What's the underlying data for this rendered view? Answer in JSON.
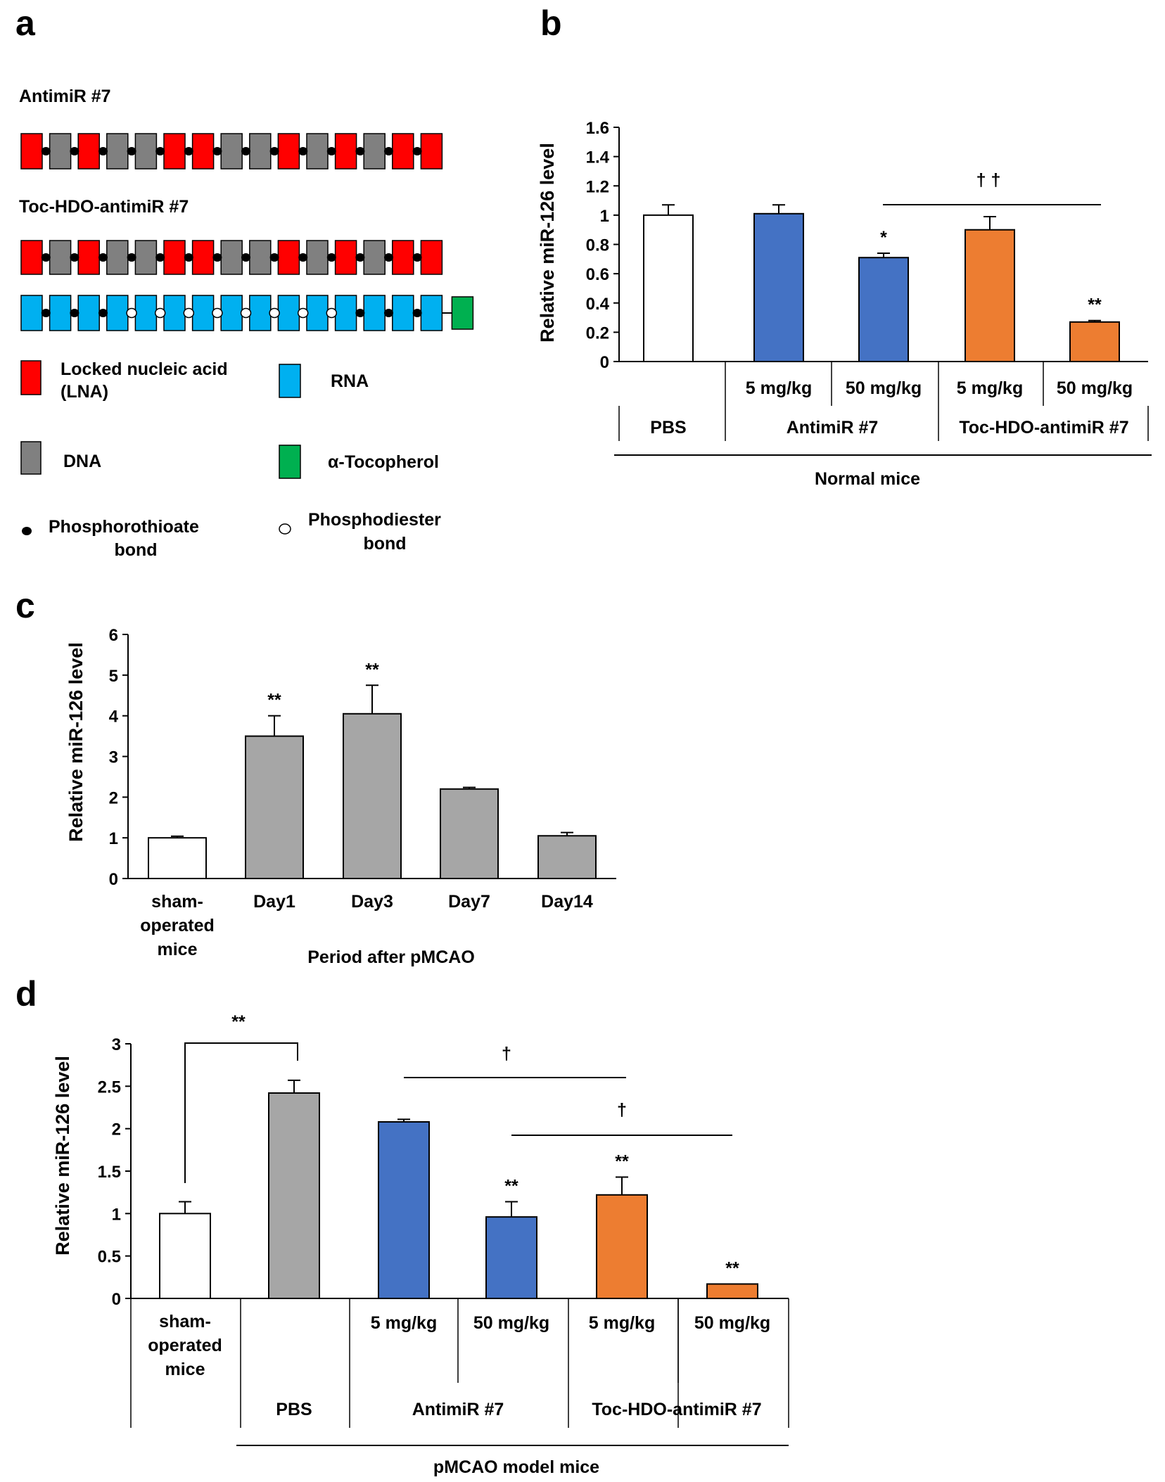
{
  "panels": {
    "a": {
      "letter": "a",
      "construct1_title": "AntimiR #7",
      "construct2_title": "Toc-HDO-antimiR #7",
      "antimir_strand": [
        "LNA",
        "DNA",
        "LNA",
        "DNA",
        "DNA",
        "LNA",
        "LNA",
        "DNA",
        "DNA",
        "LNA",
        "DNA",
        "LNA",
        "DNA",
        "LNA",
        "LNA"
      ],
      "antimir_bonds": [
        "PS",
        "PS",
        "PS",
        "PS",
        "PS",
        "PS",
        "PS",
        "PS",
        "PS",
        "PS",
        "PS",
        "PS",
        "PS",
        "PS"
      ],
      "rna_strand": [
        "RNA",
        "RNA",
        "RNA",
        "RNA",
        "RNA",
        "RNA",
        "RNA",
        "RNA",
        "RNA",
        "RNA",
        "RNA",
        "RNA",
        "RNA",
        "RNA",
        "RNA"
      ],
      "rna_bonds": [
        "PS",
        "PS",
        "PS",
        "PO",
        "PO",
        "PO",
        "PO",
        "PO",
        "PO",
        "PO",
        "PO",
        "PS",
        "PS",
        "PS"
      ],
      "legend": {
        "lna_line1": "Locked nucleic acid",
        "lna_line2": "(LNA)",
        "rna": "RNA",
        "dna": "DNA",
        "toc": "α-Tocopherol",
        "ps_line1": "Phosphorothioate",
        "ps_line2": "bond",
        "po_line1": "Phosphodiester",
        "po_line2": "bond"
      },
      "colors": {
        "LNA": "#ff0000",
        "DNA": "#808080",
        "RNA": "#00b0f0",
        "Toc": "#00b050"
      }
    },
    "b_letter": "b",
    "c_letter": "c",
    "d_letter": "d"
  },
  "chart_data": [
    {
      "panel": "b",
      "type": "bar",
      "ylabel": "Relative miR-126 level",
      "ylim": [
        0,
        1.6
      ],
      "yticks": [
        "0",
        "0.2",
        "0.4",
        "0.6",
        "0.8",
        "1",
        "1.2",
        "1.4",
        "1.6"
      ],
      "bars": [
        {
          "value": 1.0,
          "err": 0.07,
          "color": "#ffffff",
          "sig": ""
        },
        {
          "value": 1.01,
          "err": 0.06,
          "color": "#4472c4",
          "sig": ""
        },
        {
          "value": 0.71,
          "err": 0.03,
          "color": "#4472c4",
          "sig": "*"
        },
        {
          "value": 0.9,
          "err": 0.09,
          "color": "#ed7d31",
          "sig": ""
        },
        {
          "value": 0.27,
          "err": 0.01,
          "color": "#ed7d31",
          "sig": "**"
        }
      ],
      "row1": [
        "",
        "5 mg/kg",
        "50 mg/kg",
        "5 mg/kg",
        "50 mg/kg"
      ],
      "row2": [
        "PBS",
        "AntimiR #7",
        "Toc-HDO-antimiR #7"
      ],
      "group_label": "Normal mice",
      "brackets": [
        {
          "label": "† †"
        }
      ]
    },
    {
      "panel": "c",
      "type": "bar",
      "ylabel": "Relative miR-126 level",
      "xlabel": "Period after pMCAO",
      "ylim": [
        0,
        6
      ],
      "yticks": [
        "0",
        "1",
        "2",
        "3",
        "4",
        "5",
        "6"
      ],
      "categories": [
        "sham-operated mice",
        "Day1",
        "Day3",
        "Day7",
        "Day14"
      ],
      "category_lines": [
        [
          "sham-",
          "operated",
          "mice"
        ],
        [
          "Day1"
        ],
        [
          "Day3"
        ],
        [
          "Day7"
        ],
        [
          "Day14"
        ]
      ],
      "bars": [
        {
          "value": 1.0,
          "err": 0.04,
          "color": "#ffffff",
          "sig": ""
        },
        {
          "value": 3.5,
          "err": 0.5,
          "color": "#a6a6a6",
          "sig": "**"
        },
        {
          "value": 4.05,
          "err": 0.7,
          "color": "#a6a6a6",
          "sig": "**"
        },
        {
          "value": 2.2,
          "err": 0.04,
          "color": "#a6a6a6",
          "sig": ""
        },
        {
          "value": 1.05,
          "err": 0.08,
          "color": "#a6a6a6",
          "sig": ""
        }
      ]
    },
    {
      "panel": "d",
      "type": "bar",
      "ylabel": "Relative miR-126 level",
      "ylim": [
        0,
        3
      ],
      "yticks": [
        "0",
        "0.5",
        "1",
        "1.5",
        "2",
        "2.5",
        "3"
      ],
      "bars": [
        {
          "value": 1.0,
          "err": 0.14,
          "color": "#ffffff",
          "sig": ""
        },
        {
          "value": 2.42,
          "err": 0.15,
          "color": "#a6a6a6",
          "sig": ""
        },
        {
          "value": 2.08,
          "err": 0.03,
          "color": "#4472c4",
          "sig": ""
        },
        {
          "value": 0.96,
          "err": 0.18,
          "color": "#4472c4",
          "sig": "**"
        },
        {
          "value": 1.22,
          "err": 0.21,
          "color": "#ed7d31",
          "sig": "**"
        },
        {
          "value": 0.17,
          "err": 0.0,
          "color": "#ed7d31",
          "sig": "**"
        }
      ],
      "sham_lines": [
        "sham-",
        "operated",
        "mice"
      ],
      "row1": [
        "5 mg/kg",
        "50 mg/kg",
        "5 mg/kg",
        "50 mg/kg"
      ],
      "row2": [
        "PBS",
        "AntimiR #7",
        "Toc-HDO-antimiR #7"
      ],
      "group_label": "pMCAO  model mice",
      "brackets": [
        {
          "label": "**"
        },
        {
          "label": "†"
        },
        {
          "label": "†"
        }
      ]
    }
  ]
}
